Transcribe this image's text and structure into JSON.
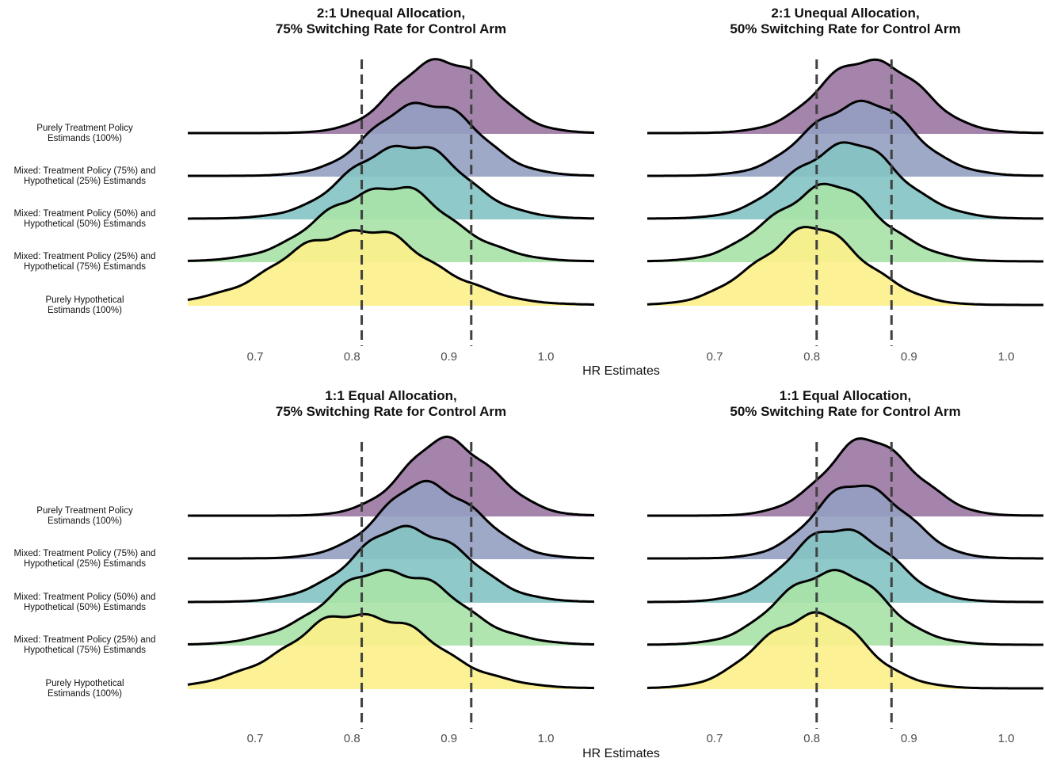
{
  "chart_data": {
    "type": "ridgeline",
    "xlabel": "HR Estimates",
    "xticks": [
      0.7,
      0.8,
      0.9,
      1.0
    ],
    "xlim_left": [
      0.63,
      1.05
    ],
    "xlim_right": [
      0.63,
      1.05
    ],
    "categories": [
      "Purely Treatment Policy\nEstimands (100%)",
      "Mixed: Treatment Policy (75%) and\nHypothetical (25%) Estimands",
      "Mixed: Treatment Policy (50%) and\nHypothetical (50%) Estimands",
      "Mixed: Treatment Policy (25%) and\nHypothetical (75%) Estimands",
      "Purely Hypothetical\nEstimands (100%)"
    ],
    "colors": [
      "#9b77a3",
      "#949fc1",
      "#84c3c3",
      "#a9e2a6",
      "#fdf08a"
    ],
    "panels": [
      {
        "title": "2:1 Unequal Allocation,\n75% Switching Rate for Control Arm",
        "column": "left",
        "row": "top",
        "ref_lines": [
          0.81,
          0.923
        ],
        "series": [
          {
            "center": 0.895,
            "sd": 0.048
          },
          {
            "center": 0.875,
            "sd": 0.052
          },
          {
            "center": 0.855,
            "sd": 0.057
          },
          {
            "center": 0.835,
            "sd": 0.064
          },
          {
            "center": 0.805,
            "sd": 0.075
          }
        ]
      },
      {
        "title": "2:1 Unequal Allocation,\n50% Switching Rate for Control Arm",
        "column": "right",
        "row": "top",
        "ref_lines": [
          0.805,
          0.882
        ],
        "series": [
          {
            "center": 0.86,
            "sd": 0.05
          },
          {
            "center": 0.85,
            "sd": 0.052
          },
          {
            "center": 0.835,
            "sd": 0.054
          },
          {
            "center": 0.815,
            "sd": 0.055
          },
          {
            "center": 0.8,
            "sd": 0.055
          }
        ]
      },
      {
        "title": "1:1 Equal Allocation,\n75% Switching Rate for Control Arm",
        "column": "left",
        "row": "bottom",
        "ref_lines": [
          0.81,
          0.923
        ],
        "series": [
          {
            "center": 0.9,
            "sd": 0.046
          },
          {
            "center": 0.88,
            "sd": 0.05
          },
          {
            "center": 0.86,
            "sd": 0.057
          },
          {
            "center": 0.84,
            "sd": 0.065
          },
          {
            "center": 0.81,
            "sd": 0.073
          }
        ]
      },
      {
        "title": "1:1 Equal Allocation,\n50% Switching Rate for Control Arm",
        "column": "right",
        "row": "bottom",
        "ref_lines": [
          0.805,
          0.882
        ],
        "series": [
          {
            "center": 0.86,
            "sd": 0.046
          },
          {
            "center": 0.85,
            "sd": 0.046
          },
          {
            "center": 0.83,
            "sd": 0.05
          },
          {
            "center": 0.82,
            "sd": 0.052
          },
          {
            "center": 0.8,
            "sd": 0.052
          }
        ]
      }
    ]
  }
}
